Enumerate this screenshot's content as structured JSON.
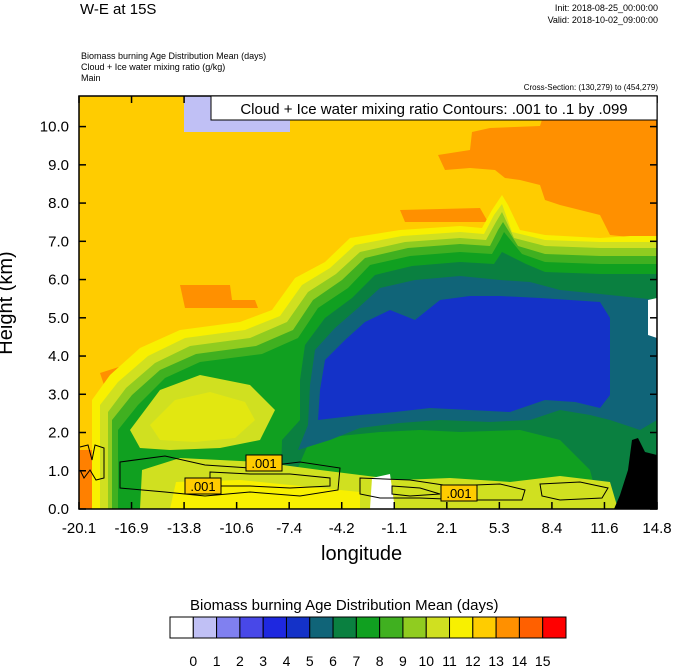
{
  "header": {
    "title": "W-E at 15S",
    "init": "Init: 2018-08-25_00:00:00",
    "valid": "Valid: 2018-10-02_09:00:00",
    "field1": "Biomass burning Age Distribution Mean    (days)",
    "field2": "Cloud + Ice water mixing ratio    (g/kg)",
    "field3": "Main",
    "cross_section": "Cross-Section: (130,279) to (454,279)"
  },
  "chart_data": {
    "type": "heatmap",
    "xlabel": "longitude",
    "ylabel": "Height (km)",
    "x_ticks": [
      "-20.1",
      "-16.9",
      "-13.8",
      "-10.6",
      "-7.4",
      "-4.2",
      "-1.1",
      "2.1",
      "5.3",
      "8.4",
      "11.6",
      "14.8"
    ],
    "y_ticks": [
      "0.0",
      "1.0",
      "2.0",
      "3.0",
      "4.0",
      "5.0",
      "6.0",
      "7.0",
      "8.0",
      "9.0",
      "10.0"
    ],
    "x_range": [
      -20.1,
      14.8
    ],
    "y_range": [
      0.0,
      10.8
    ],
    "contour_box_label": "Cloud + Ice water mixing ratio Contours: .001 to .1 by .099",
    "contour_labels": [
      ".001",
      ".001",
      ".001"
    ],
    "colorbar": {
      "title": "Biomass burning Age Distribution Mean  (days)",
      "levels": [
        "0",
        "1",
        "2",
        "3",
        "4",
        "5",
        "6",
        "7",
        "8",
        "9",
        "10",
        "11",
        "12",
        "13",
        "14",
        "15"
      ],
      "colors": [
        "#ffffff",
        "#c0c0f5",
        "#8080f0",
        "#4848e8",
        "#1e28e0",
        "#1432c8",
        "#106478",
        "#0a8040",
        "#10a020",
        "#40b020",
        "#90cc20",
        "#d0e020",
        "#f8f000",
        "#ffcc00",
        "#ff9000",
        "#ff6000",
        "#ff0000"
      ]
    },
    "regions": {
      "background": "#ffcc00",
      "upper_orange": "#ff9000",
      "surface_orange": "#ff8000",
      "terrain": "#000000"
    }
  }
}
